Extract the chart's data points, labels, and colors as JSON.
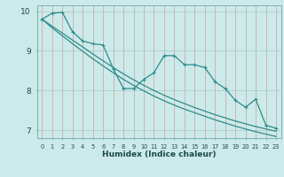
{
  "xlabel": "Humidex (Indice chaleur)",
  "x": [
    0,
    1,
    2,
    3,
    4,
    5,
    6,
    7,
    8,
    9,
    10,
    11,
    12,
    13,
    14,
    15,
    16,
    17,
    18,
    19,
    20,
    21,
    22,
    23
  ],
  "line_jagged": [
    9.8,
    9.95,
    9.97,
    9.48,
    9.25,
    9.18,
    9.15,
    8.55,
    8.05,
    8.05,
    8.28,
    8.45,
    8.88,
    8.88,
    8.65,
    8.65,
    8.58,
    8.22,
    8.05,
    7.75,
    7.58,
    7.78,
    7.12,
    7.05
  ],
  "line_smooth_upper": [
    9.8,
    9.62,
    9.45,
    9.27,
    9.1,
    8.92,
    8.75,
    8.58,
    8.42,
    8.27,
    8.13,
    8.0,
    7.88,
    7.77,
    7.67,
    7.57,
    7.48,
    7.39,
    7.31,
    7.23,
    7.16,
    7.09,
    7.03,
    6.97
  ],
  "line_smooth_lower": [
    9.8,
    9.58,
    9.38,
    9.18,
    8.99,
    8.8,
    8.62,
    8.45,
    8.28,
    8.13,
    7.99,
    7.86,
    7.74,
    7.63,
    7.53,
    7.44,
    7.35,
    7.26,
    7.18,
    7.1,
    7.03,
    6.96,
    6.9,
    6.84
  ],
  "color": "#2e8b8b",
  "bg_color": "#cdeaea",
  "grid_color_v": "#c8a0a0",
  "grid_color_h": "#a8c8c8",
  "ylim": [
    6.8,
    10.15
  ],
  "xlim": [
    -0.5,
    23.5
  ],
  "yticks": [
    7,
    8,
    9,
    10
  ],
  "xticks": [
    0,
    1,
    2,
    3,
    4,
    5,
    6,
    7,
    8,
    9,
    10,
    11,
    12,
    13,
    14,
    15,
    16,
    17,
    18,
    19,
    20,
    21,
    22,
    23
  ]
}
